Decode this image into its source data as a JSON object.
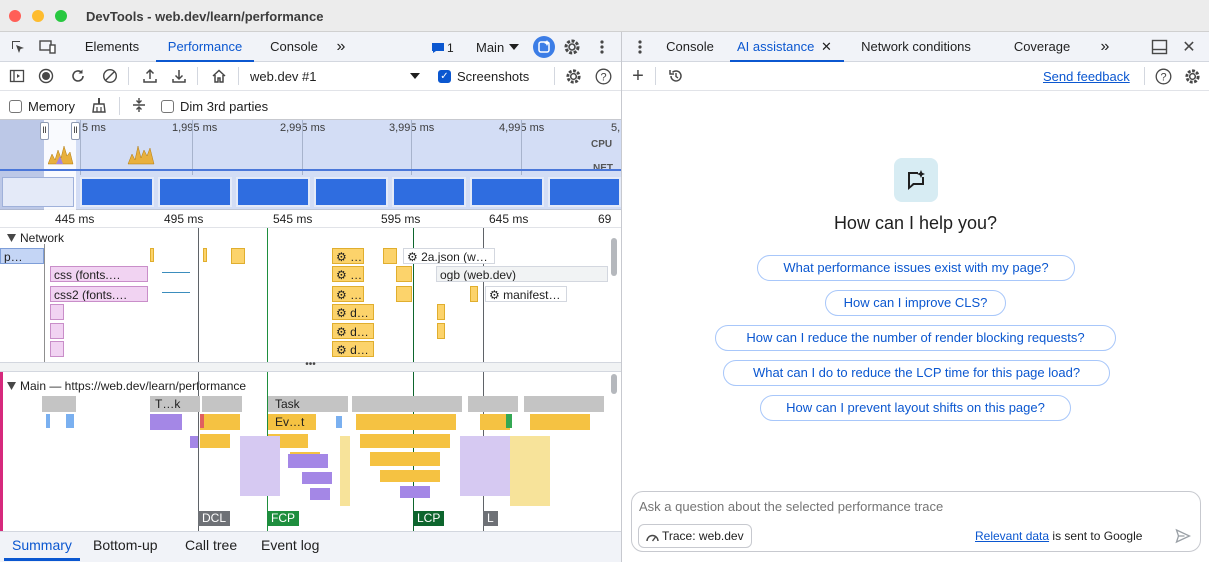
{
  "window": {
    "title": "DevTools - web.dev/learn/performance"
  },
  "left_tabs": {
    "elements": "Elements",
    "performance": "Performance",
    "console": "Console",
    "more": "»",
    "issues_count": "1",
    "thread": "Main"
  },
  "perf_toolbar": {
    "recording": "web.dev #1",
    "screenshots": "Screenshots",
    "memory": "Memory",
    "dim_3rd_parties": "Dim 3rd parties"
  },
  "overview": {
    "ticks": [
      "5 ms",
      "1,995 ms",
      "2,995 ms",
      "3,995 ms",
      "4,995 ms",
      "5,"
    ],
    "cpu": "CPU",
    "net": "NET"
  },
  "ruler": {
    "ticks": [
      "445 ms",
      "495 ms",
      "545 ms",
      "595 ms",
      "645 ms",
      "69"
    ]
  },
  "network": {
    "header": "Network",
    "items": [
      "p…",
      "css (fonts.…",
      "css2 (fonts.…",
      "2a.json (w…",
      "ogb (web.dev)",
      "manifest…",
      "d…",
      "d…",
      "d…"
    ]
  },
  "main_track": {
    "header": "Main — https://web.dev/learn/performance",
    "task_short": "T…k",
    "task": "Task",
    "event": "Ev…t",
    "markers": [
      "DCL",
      "FCP",
      "LCP",
      "L"
    ]
  },
  "bottom_tabs": [
    "Summary",
    "Bottom-up",
    "Call tree",
    "Event log"
  ],
  "right_tabs": {
    "console": "Console",
    "ai": "AI assistance",
    "network_conditions": "Network conditions",
    "coverage": "Coverage",
    "more": "»"
  },
  "ai": {
    "send_feedback": "Send feedback",
    "heading": "How can I help you?",
    "suggestions": [
      "What performance issues exist with my page?",
      "How can I improve CLS?",
      "How can I reduce the number of render blocking requests?",
      "What can I do to reduce the LCP time for this page load?",
      "How can I prevent layout shifts on this page?"
    ],
    "input_placeholder": "Ask a question about the selected performance trace",
    "context_chip": "Trace: web.dev",
    "disclaimer_link": "Relevant data",
    "disclaimer_rest": " is sent to Google"
  },
  "colors": {
    "accent": "#0b57d0",
    "fcp": "#1e8e3e",
    "lcp": "#0d652d",
    "dcl": "#5f6368"
  }
}
